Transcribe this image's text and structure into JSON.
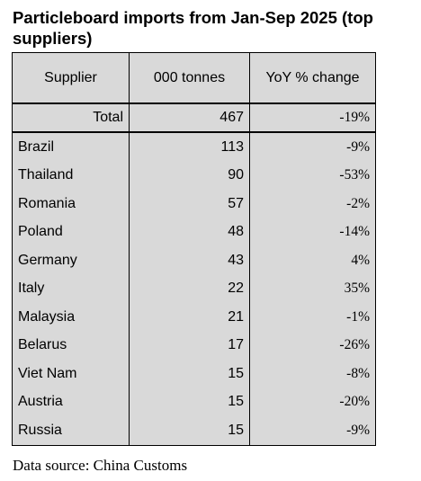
{
  "chart_data": {
    "type": "table",
    "title": "Particleboard imports from Jan-Sep 2025 (top suppliers)",
    "columns": [
      "Supplier",
      "000 tonnes",
      "YoY % change"
    ],
    "total": {
      "label": "Total",
      "tonnes": 467,
      "yoy": "-19%"
    },
    "rows": [
      {
        "supplier": "Brazil",
        "tonnes": 113,
        "yoy": "-9%"
      },
      {
        "supplier": "Thailand",
        "tonnes": 90,
        "yoy": "-53%"
      },
      {
        "supplier": "Romania",
        "tonnes": 57,
        "yoy": "-2%"
      },
      {
        "supplier": "Poland",
        "tonnes": 48,
        "yoy": "-14%"
      },
      {
        "supplier": "Germany",
        "tonnes": 43,
        "yoy": "4%"
      },
      {
        "supplier": "Italy",
        "tonnes": 22,
        "yoy": "35%"
      },
      {
        "supplier": "Malaysia",
        "tonnes": 21,
        "yoy": "-1%"
      },
      {
        "supplier": "Belarus",
        "tonnes": 17,
        "yoy": "-26%"
      },
      {
        "supplier": "Viet Nam",
        "tonnes": 15,
        "yoy": "-8%"
      },
      {
        "supplier": "Austria",
        "tonnes": 15,
        "yoy": "-20%"
      },
      {
        "supplier": "Russia",
        "tonnes": 15,
        "yoy": "-9%"
      }
    ],
    "source": "Data source: China Customs",
    "background_color": "#d9d9d9"
  }
}
